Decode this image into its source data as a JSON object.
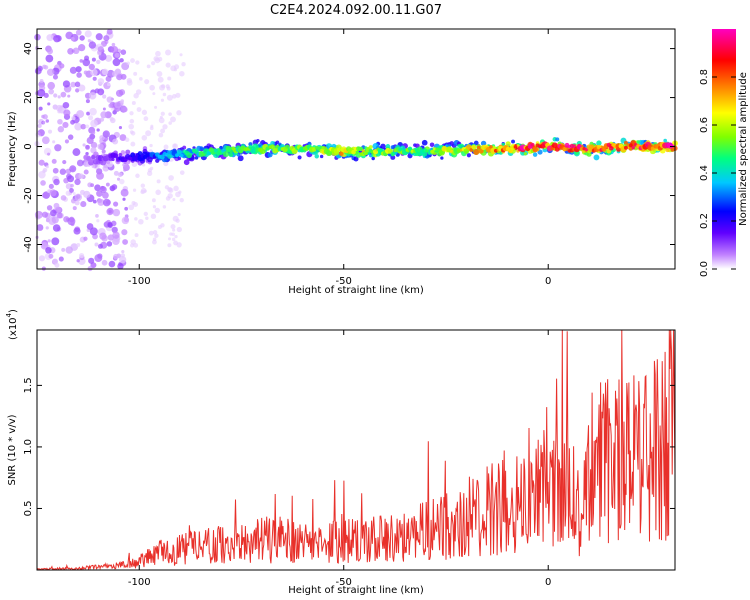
{
  "title": "C2E4.2024.092.00.11.G07",
  "chart_data": [
    {
      "type": "heatmap",
      "xlabel": "Height of straight line (km)",
      "ylabel": "Frequency (Hz)",
      "xlim": [
        -125,
        31
      ],
      "ylim": [
        -50,
        48
      ],
      "x_ticks": [
        -100,
        -50,
        0
      ],
      "y_ticks": [
        -40,
        -20,
        0,
        20,
        40
      ],
      "colorbar": {
        "label": "Normalized spectral amplitude",
        "range": [
          0,
          1
        ],
        "ticks": [
          0.0,
          0.2,
          0.4,
          0.6,
          0.8
        ],
        "colormap": [
          "#ffffff",
          "#c080ff",
          "#6000ff",
          "#0000ff",
          "#00c8ff",
          "#00ff80",
          "#80ff00",
          "#ffff00",
          "#ff8000",
          "#ff0000",
          "#ff00c0"
        ]
      },
      "ridge": {
        "description_points_x": [
          -125,
          -110,
          -100,
          -90,
          -80,
          -70,
          -60,
          -50,
          -40,
          -30,
          -20,
          -10,
          0,
          10,
          20,
          31
        ],
        "frequency_hz": [
          -3,
          -5,
          -4,
          -3,
          -2,
          -1,
          -1,
          -2,
          -2,
          -2,
          -1,
          -1,
          0,
          -1,
          0,
          0
        ],
        "peak_amplitude": [
          0.05,
          0.15,
          0.3,
          0.45,
          0.55,
          0.6,
          0.6,
          0.75,
          0.65,
          0.6,
          0.75,
          0.9,
          0.95,
          0.95,
          0.9,
          0.95
        ]
      }
    },
    {
      "type": "line",
      "xlabel": "Height of straight line (km)",
      "ylabel": "SNR (10 * v/v)",
      "y_multiplier": "(x10",
      "y_multiplier_exp": "4",
      "y_multiplier_close": ")",
      "xlim": [
        -125,
        31
      ],
      "ylim": [
        0,
        1.95
      ],
      "x_ticks": [
        -100,
        -50,
        0
      ],
      "y_ticks": [
        0.5,
        1.0,
        1.5
      ],
      "y_tick_labels": [
        "0.5",
        "1.0",
        "1.5"
      ],
      "series": [
        {
          "color": "#e8302a",
          "x": [
            -125,
            -115,
            -105,
            -100,
            -95,
            -90,
            -85,
            -80,
            -75,
            -70,
            -65,
            -60,
            -55,
            -50,
            -45,
            -40,
            -35,
            -30,
            -25,
            -20,
            -15,
            -13,
            -10,
            -5,
            0,
            5,
            8,
            10,
            15,
            20,
            25,
            28,
            31
          ],
          "y": [
            0.01,
            0.02,
            0.05,
            0.1,
            0.2,
            0.25,
            0.27,
            0.3,
            0.3,
            0.35,
            0.35,
            0.3,
            0.35,
            0.35,
            0.35,
            0.35,
            0.4,
            0.45,
            0.5,
            0.6,
            0.75,
            0.8,
            0.7,
            0.8,
            0.95,
            1.05,
            0.6,
            1.15,
            1.25,
            1.3,
            1.35,
            1.5,
            1.6
          ]
        }
      ]
    }
  ]
}
